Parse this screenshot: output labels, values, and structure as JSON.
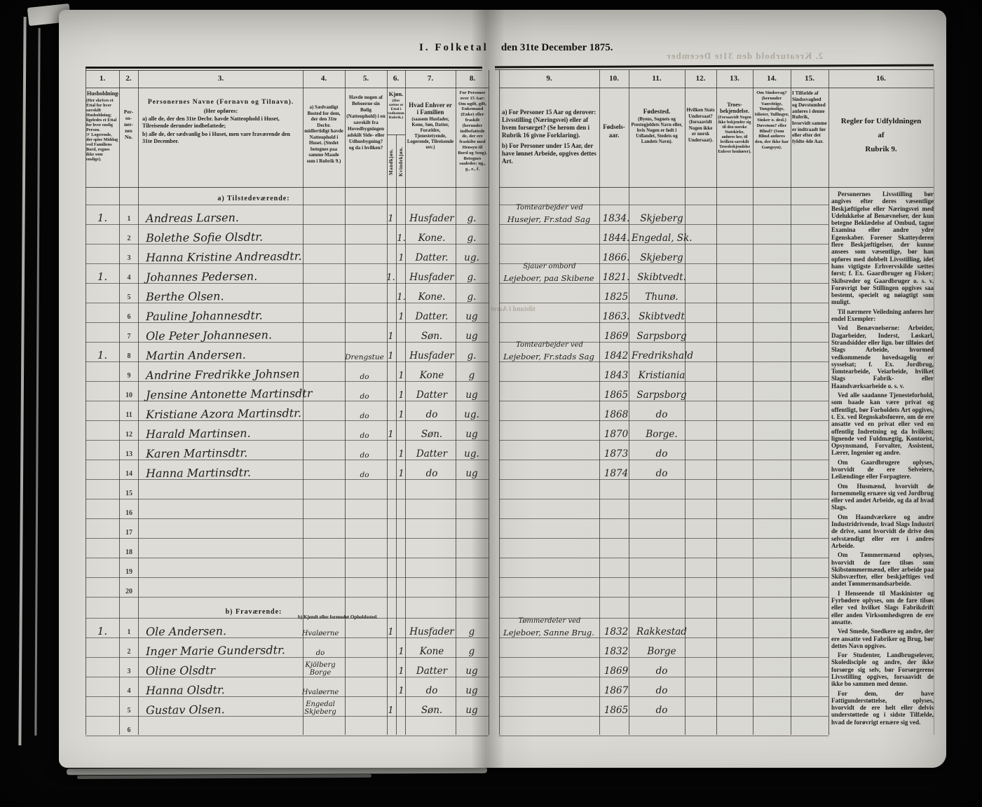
{
  "title": {
    "part1": "I. Folketal",
    "part2": "den 31te December 1875."
  },
  "ghosts": {
    "top_right": "2. Kreaturhold den 31te December",
    "mid": "tilstand i Aaret"
  },
  "header": {
    "cols": [
      {
        "no": "1.",
        "title": "Husholdninger.",
        "note": "(Her skrives et Ettal for hver særskilt Husholdning; ligeledes et Ettal for hver enslig Person.\n☞ Logerende, der spise Middag ved Familiens Bord, regnes ikke som enslige)."
      },
      {
        "no": "2.",
        "vertical": "Per-\nso-\nner-\nnes\nNo."
      },
      {
        "no": "3.",
        "title": "Personernes Navne (Fornavn og Tilnavn).",
        "line2": "(Her opføres:",
        "a": "a) alle de, der den 31te Decbr. havde Natteophold i Huset, Tilreisende derunder indbefattede;",
        "b": "b) alle de, der sædvanlig bo i Huset, men vare fraværende den 31te December."
      },
      {
        "no": "4.",
        "text": "a) Sædvanligt Bosted for dem, der den 31te Decbr. midlertidigt havde Natteophold i Huset. (Stedet betegnes paa samme Maade som i Rubrik 9.)"
      },
      {
        "no": "5.",
        "text": "Havde nogen af Beboerne sin Bolig (Natteophold) i en særskilt fra Hovedbygningen adskilt Side- eller Udhusbygning? og da i hvilken?"
      },
      {
        "no": "6.",
        "title": "Kjøn.",
        "note": "(Her sættes et Ettal i vedkommende Rubrik.)",
        "sub_m": "Mandkjøn.",
        "sub_k": "Kvindekjøn."
      },
      {
        "no": "7.",
        "title": "Hvad Enhver er i Familien",
        "note": "(saasom Husfader, Kone, Søn, Datter, Forældre, Tjenestetyende, Logerende, Tilreisende osv.)"
      },
      {
        "no": "8.",
        "text": "For Personer over 15 Aar: Om ugift, gift, Enkemand (Enke) eller fraskilt (herunder indbefattede de, der ere fraskilte med Hensyn til Bord og Seng). Betegnes saaledes: ug., g., e., f."
      },
      {
        "no": "9.",
        "a": "a) For Personer 15 Aar og derover: Livsstilling (Næringsvei) eller af hvem forsørget? (Se herom den i Rubrik 16 givne Forklaring).",
        "b": "b) For Personer under 15 Aar, der have lønnet Arbeide, opgives dettes Art."
      },
      {
        "no": "10.",
        "text": "Fødsels-\naar."
      },
      {
        "no": "11.",
        "title": "Fødested.",
        "note": "(Byens, Sognets og Prestegjeldets Navn eller, hvis Nogen er født i Udlandet, Stedets og Landets Navn)."
      },
      {
        "no": "12.",
        "text": "Hvilken Stats Undersaat? (forsaavidt Nogen ikke er norsk Undersaat)."
      },
      {
        "no": "13.",
        "title": "Troes-bekjendelse.",
        "note": "(Forsaavidt Nogen ikke bekjender sig til den norske Statskirke, anføres her, til hvilken særskilt Troesbekjendelse Enhver henhører)."
      },
      {
        "no": "14.",
        "text": "Om Sindssvag? (herunder Vanvittige, Tungsindige, Idioter, Tullinger, Sinker o. desl.) Døvstum? eller Blind? (Som Blind anføres den, der ikke har Gangsyn)."
      },
      {
        "no": "15.",
        "text": "I Tilfælde af Sindssvaghed og Døvstumhed anføres i denne Rubrik, hvorvidt samme er indtraadt før eller efter det fyldte 4de Aar."
      },
      {
        "no": "16.",
        "title": "Regler for Udfyldningen",
        "mid": "af",
        "sub": "Rubrik 9."
      }
    ]
  },
  "rules": [
    "Personernes Livsstilling bør angives efter deres væsentlige Beskjæftigelse eller Næringsvei med Udelukkelse af Benævnelser, der kun betegne Beklædelse af Ombud, tagne Examina eller andre ydre Egenskaber. Forener Skatteyderen flere Beskjæftigelser, der kunne ansees som væsentlige, bør han opføres med dobbelt Livsstilling, idet hans vigtigste Erhvervskilde sættes først; f. Ex. Gaardbruger og Fisker; Skibsreder og Gaardbruger o. s. v. Forøvrigt bør Stillingen opgives saa bestemt, specielt og nøiagtigt som muligt.",
    "Til nærmere Veiledning anføres her endel Exempler:",
    "Ved Benævnelserne: Arbeider, Dagarbeider, Inderst, Løskarl, Strandsidder eller lign. bør tilføies det Slags Arbeide, hvormed vedkommende hovedsagelig er sysselsat; f. Ex. Jordbrug, Tomtearbeide, Veiarbeide, hvilket Slags Fabrik- eller Haandværksarbeide o. s. v.",
    "Ved alle saadanne Tjenesteforhold, som baade kan være privat og offentligt, bør Forholdets Art opgives, t. Ex. ved Regnskabsførere, om de ere ansatte ved en privat eller ved en offentlig Indretning og da hvilken; lignende ved Fuldmægtig, Kontorist, Opsynsmand, Forvalter, Assistent, Lærer, Ingeniør og andre.",
    "Om Gaardbrugere oplyses, hvorvidt de ere Selveiere, Leilændinge eller Forpagtere.",
    "Om Husmænd, hvorvidt de fornemmelig ernære sig ved Jordbrug eller ved andet Arbeide, og da af hvad Slags.",
    "Om Haandværkere og andre Industridrivende, hvad Slags Industri de drive, samt hvorvidt de drive den selvstændigt eller ere i andres Arbeide.",
    "Om Tømmermænd oplyses, hvorvidt de fare tilsøs som Skibstømmermænd, eller arbeide paa Skibsværfter, eller beskjæftiges ved andet Tømmermandsarbeide.",
    "I Henseende til Maskinister og Fyrbødere oplyses, om de fare tilsøs eller ved hvilket Slags Fabrikdrift eller anden Virksomhedsgren de ere ansatte.",
    "Ved Smede, Snedkere og andre, der ere ansatte ved Fabriker og Brug, bør dettes Navn opgives.",
    "For Studenter, Landbrugselever, Skoledisciple og andre, der ikke forsørge sig selv, bør Forsørgerens Livsstilling opgives, forsaavidt de ikke bo sammen med denne.",
    "For dem, der have Fattigunderstøttelse, oplyses, hvorvidt de ere helt eller delvis understøttede og i sidste Tilfælde, hvad de forøvrigt ernære sig ved."
  ],
  "rows": [
    {
      "t": "section",
      "label": "a) Tilstedeværende:",
      "h": 26
    },
    {
      "t": "r",
      "hh": "1.",
      "no": "1",
      "name": "Andreas Larsen.",
      "m": "1",
      "fam": "Husfader",
      "st": "g.",
      "occ2": "Tomtearbejder ved",
      "occ": "Husejer, Fr.stad Sag",
      "yr": "1834.",
      "bp": "Skjeberg"
    },
    {
      "t": "r",
      "no": "2",
      "name": "Bolethe Sofie Olsdtr.",
      "k": "1.",
      "fam": "Kone.",
      "st": "g.",
      "yr": "1844.",
      "bp": "Engedal, Sk."
    },
    {
      "t": "r",
      "no": "3",
      "name": "Hanna Kristine Andreasdtr.",
      "k": "1",
      "fam": "Datter.",
      "st": "ug.",
      "yr": "1866.",
      "bp": "Skjeberg"
    },
    {
      "t": "r",
      "hh": "1.",
      "no": "4",
      "name": "Johannes Pedersen.",
      "m": "1.",
      "fam": "Husfader",
      "st": "g.",
      "occ2": "Sjauer ombord",
      "occ": "Lejeboer, paa Skibene",
      "yr": "1821.",
      "bp": "Skibtvedt."
    },
    {
      "t": "r",
      "no": "5",
      "name": "Berthe Olsen.",
      "k": "1.",
      "fam": "Kone.",
      "st": "g.",
      "yr": "1825",
      "bp": "Thunø."
    },
    {
      "t": "r",
      "no": "6",
      "name": "Pauline Johannesdtr.",
      "k": "1",
      "fam": "Datter.",
      "st": "ug",
      "yr": "1863.",
      "bp": "Skibtvedt"
    },
    {
      "t": "r",
      "no": "7",
      "name": "Ole Peter Johannesen.",
      "m": "1",
      "fam": "Søn.",
      "st": "ug",
      "yr": "1869",
      "bp": "Sarpsborg"
    },
    {
      "t": "r",
      "hh": "1.",
      "no": "8",
      "name": "Martin Andersen.",
      "c5": "Drengstue",
      "m": "1",
      "fam": "Husfader",
      "st": "g.",
      "occ2": "Tomtearbejder ved",
      "occ": "Lejeboer, Fr.stads Sag",
      "yr": "1842",
      "bp": "Fredrikshald"
    },
    {
      "t": "r",
      "no": "9",
      "name": "Andrine Fredrikke Johnsen",
      "c5": "do",
      "k": "1",
      "fam": "Kone",
      "st": "g",
      "yr": "1843",
      "bp": "Kristiania"
    },
    {
      "t": "r",
      "no": "10",
      "name": "Jensine Antonette Martinsdtr",
      "c5": "do",
      "k": "1",
      "fam": "Datter",
      "st": "ug",
      "yr": "1865",
      "bp": "Sarpsborg"
    },
    {
      "t": "r",
      "no": "11",
      "name": "Kristiane Azora Martinsdtr.",
      "c5": "do",
      "k": "1",
      "fam": "do",
      "st": "ug.",
      "yr": "1868",
      "bp": "do"
    },
    {
      "t": "r",
      "no": "12",
      "name": "Harald Martinsen.",
      "c5": "do",
      "m": "1",
      "fam": "Søn.",
      "st": "ug",
      "yr": "1870",
      "bp": "Borge."
    },
    {
      "t": "r",
      "no": "13",
      "name": "Karen Martinsdtr.",
      "c5": "do",
      "k": "1",
      "fam": "Datter",
      "st": "ug.",
      "yr": "1873",
      "bp": "do"
    },
    {
      "t": "r",
      "no": "14",
      "name": "Hanna Martinsdtr.",
      "c5": "do",
      "k": "1",
      "fam": "do",
      "st": "ug",
      "yr": "1874",
      "bp": "do"
    },
    {
      "t": "r",
      "no": "15"
    },
    {
      "t": "r",
      "no": "16"
    },
    {
      "t": "r",
      "no": "17"
    },
    {
      "t": "r",
      "no": "18"
    },
    {
      "t": "r",
      "no": "19"
    },
    {
      "t": "r",
      "no": "20"
    },
    {
      "t": "section",
      "label": "b) Fraværende:",
      "sub": "b) Kjendt eller formodet Opholdssted.",
      "h": 30
    },
    {
      "t": "r",
      "hh": "1.",
      "no": "1",
      "name": "Ole Andersen.",
      "c4": "Hvaløerne",
      "m": "1",
      "fam": "Husfader",
      "st": "g",
      "occ2": "Tømmerdeler ved",
      "occ": "Lejeboer, Sanne Brug.",
      "yr": "1832",
      "bp": "Rakkestad"
    },
    {
      "t": "r",
      "no": "2",
      "name": "Inger Marie Gundersdtr.",
      "c4": "do",
      "k": "1",
      "fam": "Kone",
      "st": "g",
      "yr": "1832",
      "bp": "Borge"
    },
    {
      "t": "r",
      "no": "3",
      "name": "Oline Olsdtr",
      "c4": "Kjölberg\nBorge",
      "k": "1",
      "fam": "Datter",
      "st": "ug",
      "yr": "1869",
      "bp": "do"
    },
    {
      "t": "r",
      "no": "4",
      "name": "Hanna Olsdtr.",
      "c4": "Hvaløerne",
      "k": "1",
      "fam": "do",
      "st": "ug",
      "yr": "1867",
      "bp": "do"
    },
    {
      "t": "r",
      "no": "5",
      "name": "Gustav Olsen.",
      "c4": "Engedal\nSkjeberg",
      "m": "1",
      "fam": "Søn.",
      "st": "ug",
      "yr": "1865",
      "bp": "do"
    },
    {
      "t": "r",
      "no": "6"
    }
  ]
}
